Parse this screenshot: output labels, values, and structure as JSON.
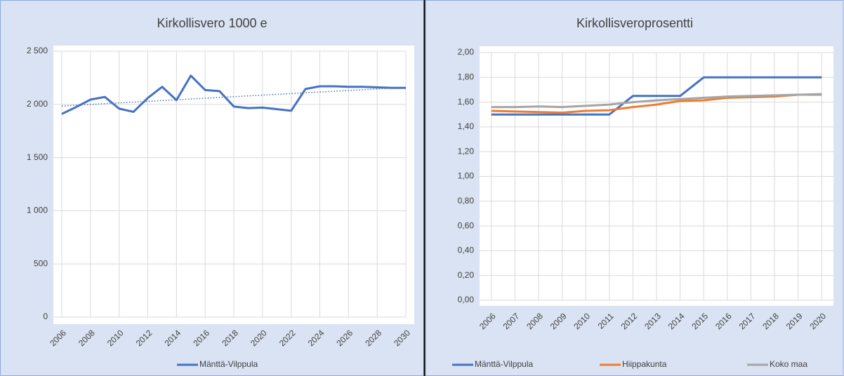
{
  "chart_data": [
    {
      "type": "line",
      "title": "Kirkollisvero 1000 e",
      "x": [
        2006,
        2007,
        2008,
        2009,
        2010,
        2011,
        2012,
        2013,
        2014,
        2015,
        2016,
        2017,
        2018,
        2019,
        2020,
        2021,
        2022,
        2023,
        2024,
        2025,
        2026,
        2027,
        2028,
        2029,
        2030
      ],
      "series": [
        {
          "name": "Mänttä-Vilppula",
          "color": "#4472c4",
          "values": [
            1910,
            1975,
            2045,
            2070,
            1960,
            1930,
            2060,
            2165,
            2040,
            2270,
            2135,
            2125,
            1980,
            1965,
            1970,
            1955,
            1940,
            2145,
            2170,
            2170,
            2165,
            2165,
            2160,
            2155,
            2155
          ]
        }
      ],
      "trend": {
        "x": [
          2006,
          2030
        ],
        "values": [
          1985,
          2160
        ],
        "color": "#4472c4"
      },
      "xlim": [
        2006,
        2030
      ],
      "xticks": [
        2006,
        2008,
        2010,
        2012,
        2014,
        2016,
        2018,
        2020,
        2022,
        2024,
        2026,
        2028,
        2030
      ],
      "ylim": [
        0,
        2500
      ],
      "yticks": [
        0,
        {
          "value": 500,
          "label": "500"
        },
        {
          "value": 1000,
          "label": "1 000"
        },
        {
          "value": 1500,
          "label": "1 500"
        },
        {
          "value": 2000,
          "label": "2 000"
        },
        {
          "value": 2500,
          "label": "2 500"
        }
      ],
      "grid": true,
      "legend": "bottom"
    },
    {
      "type": "line",
      "title": "Kirkollisveroprosentti",
      "categories": [
        "2006",
        "2007",
        "2008",
        "2009",
        "2010",
        "2011",
        "2012",
        "2013",
        "2014",
        "2015",
        "2016",
        "2017",
        "2018",
        "2019",
        "2020"
      ],
      "series": [
        {
          "name": "Mänttä-Vilppula",
          "color": "#4472c4",
          "values": [
            1.5,
            1.5,
            1.5,
            1.5,
            1.5,
            1.5,
            1.65,
            1.65,
            1.65,
            1.8,
            1.8,
            1.8,
            1.8,
            1.8,
            1.8
          ]
        },
        {
          "name": "Hiippakunta",
          "color": "#ed7d31",
          "values": [
            1.53,
            1.525,
            1.52,
            1.515,
            1.53,
            1.535,
            1.56,
            1.58,
            1.61,
            1.615,
            1.635,
            1.64,
            1.645,
            1.66,
            1.66
          ]
        },
        {
          "name": "Koko maa",
          "color": "#a5a5a5",
          "values": [
            1.56,
            1.56,
            1.565,
            1.56,
            1.57,
            1.58,
            1.6,
            1.615,
            1.625,
            1.635,
            1.645,
            1.65,
            1.655,
            1.66,
            1.665
          ]
        }
      ],
      "ylim": [
        0,
        2
      ],
      "yticks": [
        {
          "value": 0,
          "label": "0,00"
        },
        {
          "value": 0.2,
          "label": "0,20"
        },
        {
          "value": 0.4,
          "label": "0,40"
        },
        {
          "value": 0.6,
          "label": "0,60"
        },
        {
          "value": 0.8,
          "label": "0,80"
        },
        {
          "value": 1,
          "label": "1,00"
        },
        {
          "value": 1.2,
          "label": "1,20"
        },
        {
          "value": 1.4,
          "label": "1,40"
        },
        {
          "value": 1.6,
          "label": "1,60"
        },
        {
          "value": 1.8,
          "label": "1,80"
        },
        {
          "value": 2,
          "label": "2,00"
        }
      ],
      "grid": true,
      "legend": "bottom"
    }
  ]
}
